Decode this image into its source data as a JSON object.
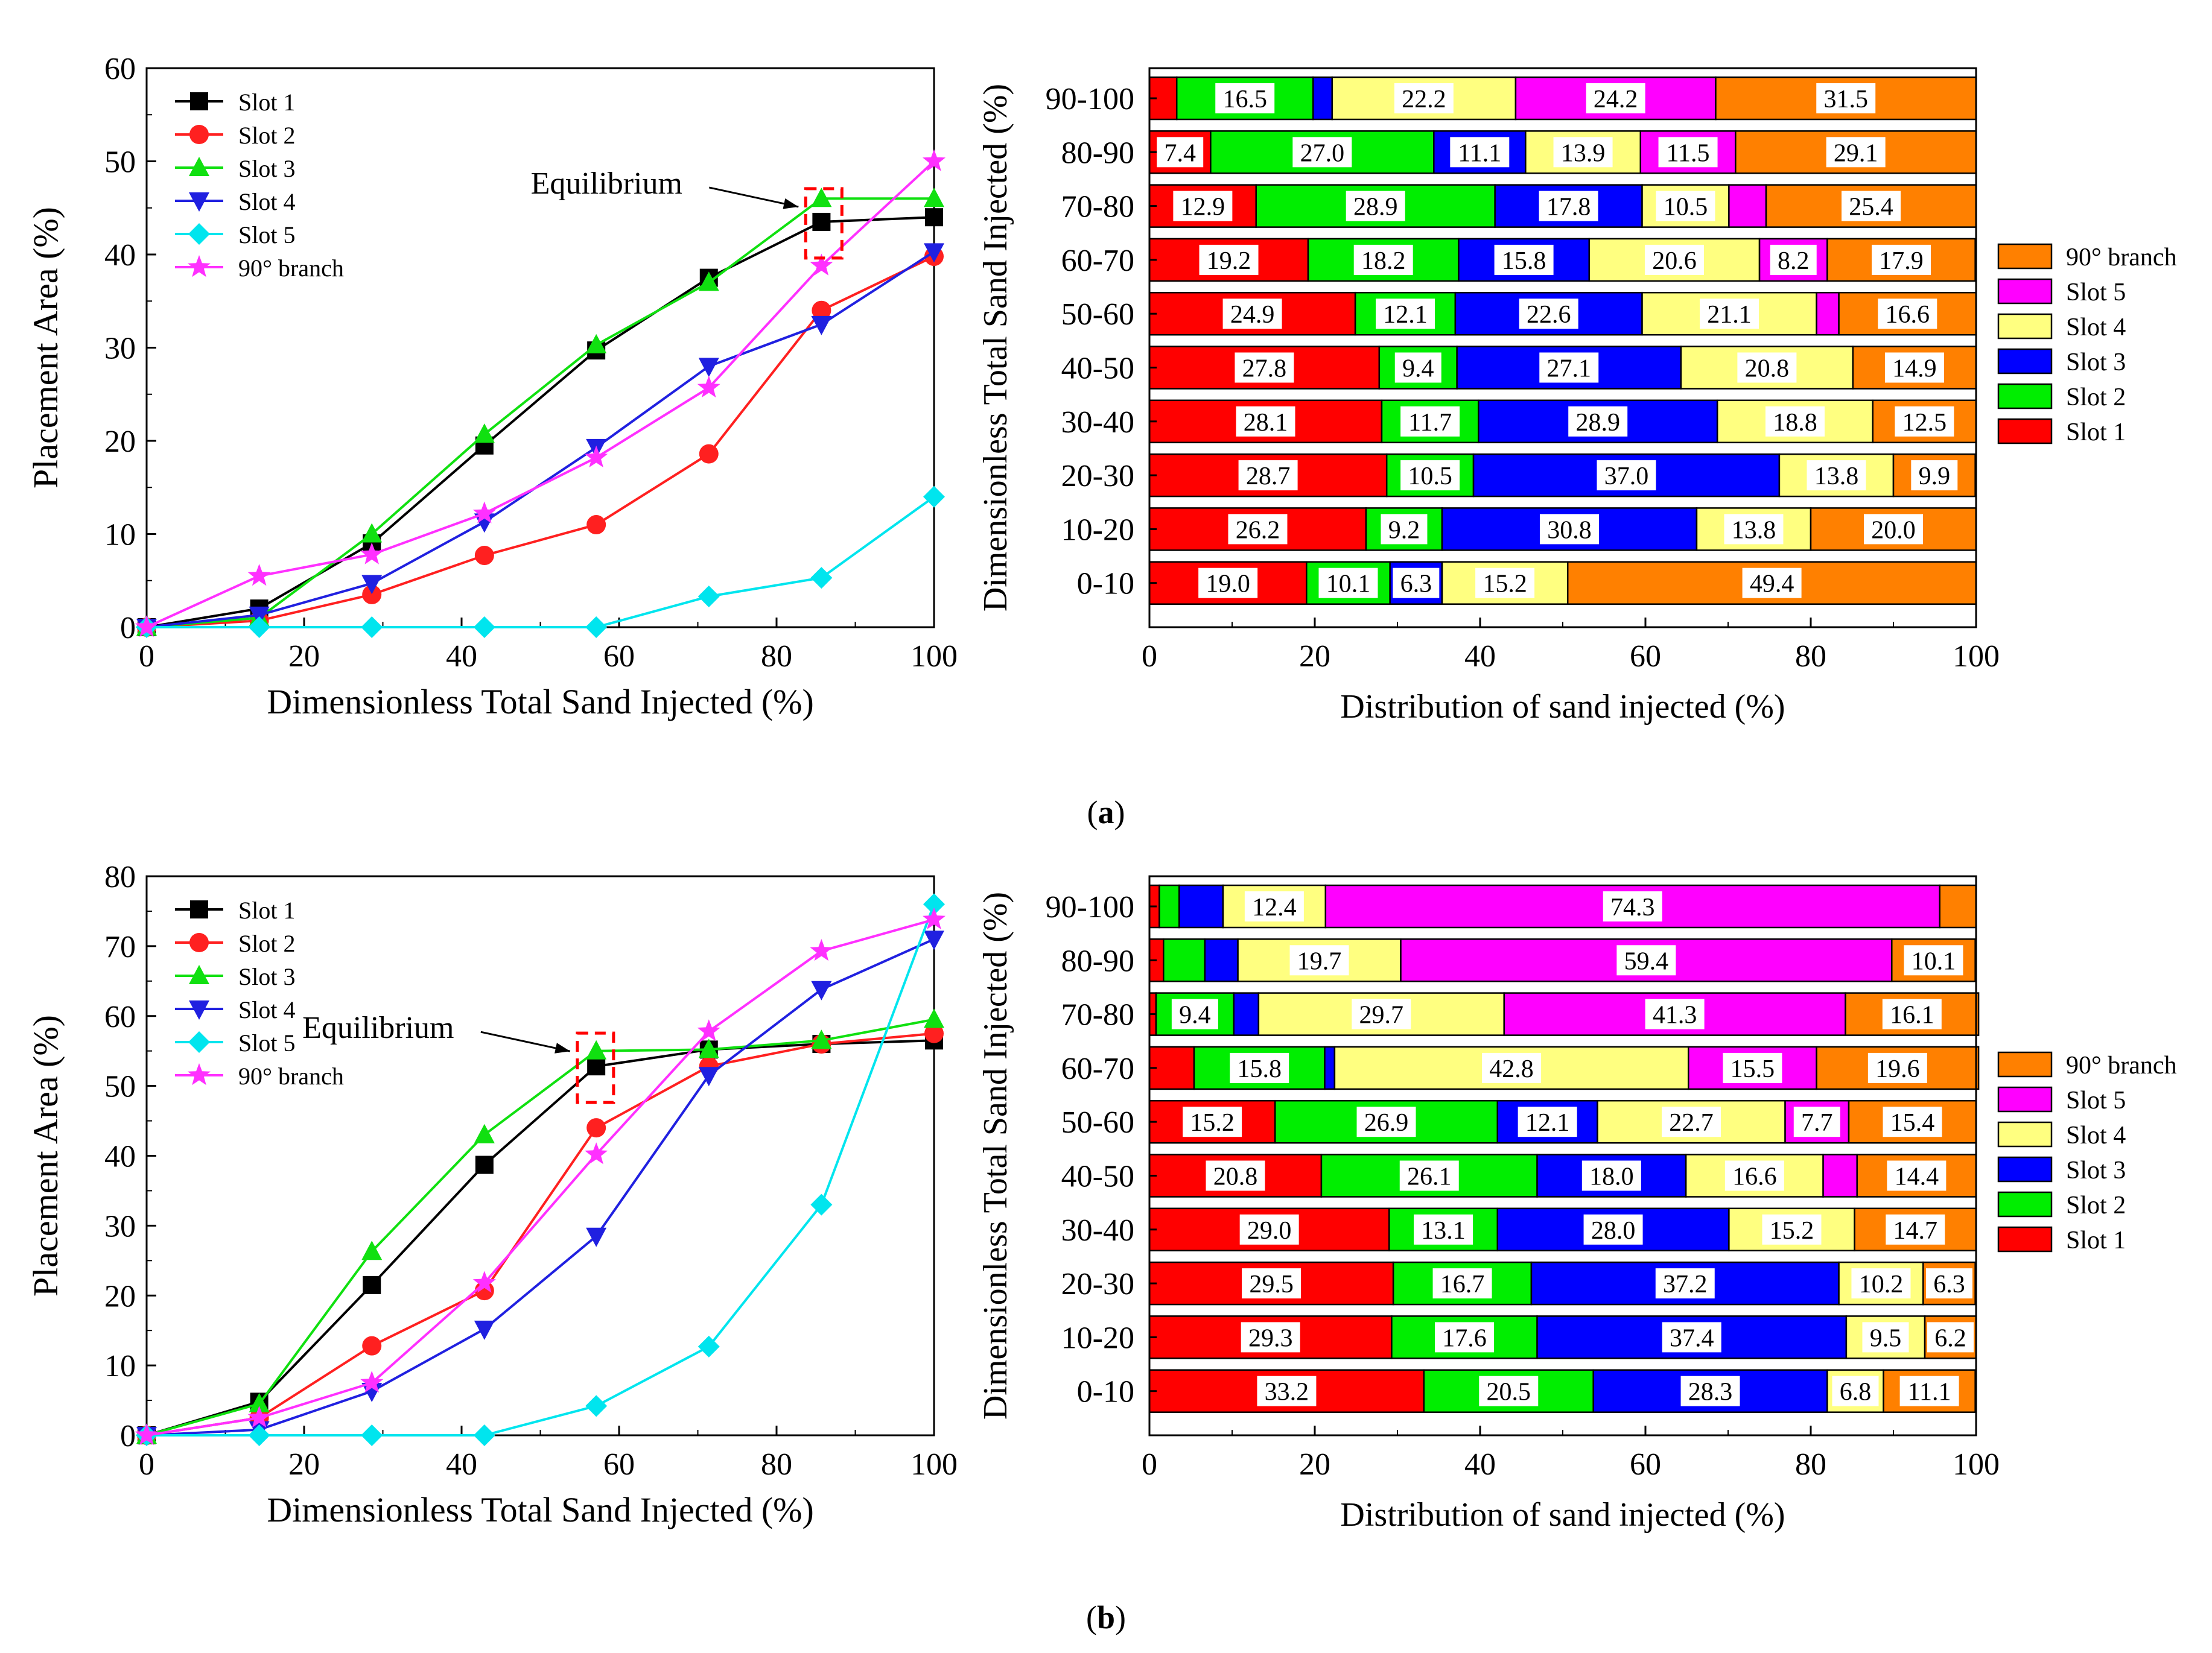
{
  "panels": [
    {
      "label": "(a)",
      "label_letter": "a",
      "line_chart": {
        "type": "line",
        "xlabel": "Dimensionless Total Sand Injected (%)",
        "ylabel": "Placement Area (%)",
        "xlim": [
          0,
          100
        ],
        "ylim": [
          0,
          60
        ],
        "xticks": [
          0,
          20,
          40,
          60,
          80,
          100
        ],
        "yticks": [
          0,
          10,
          20,
          30,
          40,
          50,
          60
        ],
        "annotation": "Equilibrium",
        "annotation_x": 86,
        "x": [
          0,
          14.3,
          28.6,
          42.9,
          57.1,
          71.4,
          85.7,
          100
        ],
        "series": [
          {
            "name": "Slot 1",
            "color": "#000000",
            "marker": "square",
            "values": [
              0,
              2.0,
              9.0,
              19.5,
              29.7,
              37.5,
              43.5,
              44.0
            ]
          },
          {
            "name": "Slot 2",
            "color": "#ff2020",
            "marker": "circle",
            "values": [
              0,
              0.7,
              3.5,
              7.7,
              11.0,
              18.6,
              34.0,
              39.8
            ]
          },
          {
            "name": "Slot 3",
            "color": "#10e010",
            "marker": "triangle-up",
            "values": [
              0,
              1.0,
              10.0,
              20.7,
              30.3,
              37.0,
              46.0,
              46.0
            ]
          },
          {
            "name": "Slot 4",
            "color": "#2020e0",
            "marker": "triangle-down",
            "values": [
              0,
              1.3,
              4.7,
              11.3,
              19.3,
              28.0,
              32.5,
              40.3
            ]
          },
          {
            "name": "Slot 5",
            "color": "#00e5ee",
            "marker": "diamond",
            "values": [
              0,
              0,
              0,
              0,
              0,
              3.3,
              5.3,
              14.0
            ]
          },
          {
            "name": "90° branch",
            "color": "#ff30ff",
            "marker": "star",
            "values": [
              0,
              5.5,
              7.8,
              12.2,
              18.2,
              25.7,
              38.8,
              50.0
            ]
          }
        ]
      },
      "bar_chart": {
        "type": "bar",
        "orientation": "horizontal-stacked",
        "xlabel": "Distribution of sand injected (%)",
        "ylabel": "Dimensionless Total Sand Injected (%)",
        "xlim": [
          0,
          100
        ],
        "xticks": [
          0,
          20,
          40,
          60,
          80,
          100
        ],
        "categories": [
          "90-100",
          "80-90",
          "70-80",
          "60-70",
          "50-60",
          "40-50",
          "30-40",
          "20-30",
          "10-20",
          "0-10"
        ],
        "series": [
          {
            "name": "Slot 1",
            "color": "#ff0000",
            "values": [
              3.3,
              7.4,
              12.9,
              19.2,
              24.9,
              27.8,
              28.1,
              28.7,
              26.2,
              19.0
            ]
          },
          {
            "name": "Slot 2",
            "color": "#00ee00",
            "values": [
              16.5,
              27.0,
              28.9,
              18.2,
              12.1,
              9.4,
              11.7,
              10.5,
              9.2,
              10.1
            ]
          },
          {
            "name": "Slot 3",
            "color": "#0000ff",
            "values": [
              2.3,
              11.1,
              17.8,
              15.8,
              22.6,
              27.1,
              28.9,
              37.0,
              30.8,
              6.3
            ]
          },
          {
            "name": "Slot 4",
            "color": "#ffff80",
            "values": [
              22.2,
              13.9,
              10.5,
              20.6,
              21.1,
              20.8,
              18.8,
              13.8,
              13.8,
              15.2
            ]
          },
          {
            "name": "Slot 5",
            "color": "#ff00ff",
            "values": [
              24.2,
              11.5,
              4.5,
              8.2,
              2.7,
              0,
              0,
              0,
              0,
              0
            ]
          },
          {
            "name": "90° branch",
            "color": "#ff8000",
            "values": [
              31.5,
              29.1,
              25.4,
              17.9,
              16.6,
              14.9,
              12.5,
              9.9,
              20.0,
              49.4
            ]
          }
        ],
        "labels": [
          [
            "",
            "16.5",
            "",
            "22.2",
            "24.2",
            "31.5"
          ],
          [
            "7.4",
            "27.0",
            "11.1",
            "13.9",
            "11.5",
            "29.1"
          ],
          [
            "12.9",
            "28.9",
            "17.8",
            "10.5",
            "",
            "25.4"
          ],
          [
            "19.2",
            "18.2",
            "15.8",
            "20.6",
            "8.2",
            "17.9"
          ],
          [
            "24.9",
            "12.1",
            "22.6",
            "21.1",
            "",
            "16.6"
          ],
          [
            "27.8",
            "9.4",
            "27.1",
            "20.8",
            "",
            "14.9"
          ],
          [
            "28.1",
            "11.7",
            "28.9",
            "18.8",
            "",
            "12.5"
          ],
          [
            "28.7",
            "10.5",
            "37.0",
            "13.8",
            "",
            "9.9"
          ],
          [
            "26.2",
            "9.2",
            "30.8",
            "13.8",
            "",
            "20.0"
          ],
          [
            "19.0",
            "10.1",
            "6.3",
            "15.2",
            "",
            "49.4"
          ]
        ]
      }
    },
    {
      "label": "(b)",
      "label_letter": "b",
      "line_chart": {
        "type": "line",
        "xlabel": "Dimensionless Total Sand Injected (%)",
        "ylabel": "Placement Area (%)",
        "xlim": [
          0,
          100
        ],
        "ylim": [
          0,
          80
        ],
        "xticks": [
          0,
          20,
          40,
          60,
          80,
          100
        ],
        "yticks": [
          0,
          10,
          20,
          30,
          40,
          50,
          60,
          70,
          80
        ],
        "annotation": "Equilibrium",
        "annotation_x": 57,
        "x": [
          0,
          14.3,
          28.6,
          42.9,
          57.1,
          71.4,
          85.7,
          100
        ],
        "series": [
          {
            "name": "Slot 1",
            "color": "#000000",
            "marker": "square",
            "values": [
              0,
              4.8,
              21.5,
              38.7,
              52.8,
              55.2,
              56.0,
              56.5
            ]
          },
          {
            "name": "Slot 2",
            "color": "#ff2020",
            "marker": "circle",
            "values": [
              0,
              2.5,
              12.8,
              20.7,
              44.0,
              52.8,
              56.0,
              57.5
            ]
          },
          {
            "name": "Slot 3",
            "color": "#10e010",
            "marker": "triangle-up",
            "values": [
              0,
              4.5,
              26.3,
              43.0,
              55.0,
              55.2,
              56.5,
              59.5
            ]
          },
          {
            "name": "Slot 4",
            "color": "#2020e0",
            "marker": "triangle-down",
            "values": [
              0,
              0.8,
              6.3,
              15.2,
              28.5,
              51.5,
              63.8,
              71.0
            ]
          },
          {
            "name": "Slot 5",
            "color": "#00e5ee",
            "marker": "diamond",
            "values": [
              0,
              0,
              0,
              0,
              4.2,
              12.7,
              33.0,
              76.0
            ]
          },
          {
            "name": "90° branch",
            "color": "#ff30ff",
            "marker": "star",
            "values": [
              0,
              2.5,
              7.5,
              21.8,
              40.2,
              57.8,
              69.3,
              73.8
            ]
          }
        ]
      },
      "bar_chart": {
        "type": "bar",
        "orientation": "horizontal-stacked",
        "xlabel": "Distribution of sand injected (%)",
        "ylabel": "Dimensionless Total Sand Injected (%)",
        "xlim": [
          0,
          100
        ],
        "xticks": [
          0,
          20,
          40,
          60,
          80,
          100
        ],
        "categories": [
          "90-100",
          "80-90",
          "70-80",
          "60-70",
          "50-60",
          "40-50",
          "30-40",
          "20-30",
          "10-20",
          "0-10"
        ],
        "series": [
          {
            "name": "Slot 1",
            "color": "#ff0000",
            "values": [
              1.2,
              1.7,
              0.8,
              5.4,
              15.2,
              20.8,
              29.0,
              29.5,
              29.3,
              33.2
            ]
          },
          {
            "name": "Slot 2",
            "color": "#00ee00",
            "values": [
              2.4,
              5.0,
              9.4,
              15.8,
              26.9,
              26.1,
              13.1,
              16.7,
              17.6,
              20.5
            ]
          },
          {
            "name": "Slot 3",
            "color": "#0000ff",
            "values": [
              5.3,
              4.0,
              3.0,
              1.2,
              12.1,
              18.0,
              28.0,
              37.2,
              37.4,
              28.3
            ]
          },
          {
            "name": "Slot 4",
            "color": "#ffff80",
            "values": [
              12.4,
              19.7,
              29.7,
              42.8,
              22.7,
              16.6,
              15.2,
              10.2,
              9.5,
              6.8
            ]
          },
          {
            "name": "Slot 5",
            "color": "#ff00ff",
            "values": [
              74.3,
              59.4,
              41.3,
              15.5,
              7.7,
              4.1,
              0,
              0,
              0,
              0
            ]
          },
          {
            "name": "90° branch",
            "color": "#ff8000",
            "values": [
              4.4,
              10.1,
              16.1,
              19.6,
              15.4,
              14.4,
              14.7,
              6.3,
              6.2,
              11.1
            ]
          }
        ],
        "labels": [
          [
            "",
            "",
            "",
            "12.4",
            "74.3",
            ""
          ],
          [
            "",
            "",
            "",
            "19.7",
            "59.4",
            "10.1"
          ],
          [
            "",
            "9.4",
            "",
            "29.7",
            "41.3",
            "16.1"
          ],
          [
            "",
            "15.8",
            "",
            "42.8",
            "15.5",
            "19.6"
          ],
          [
            "15.2",
            "26.9",
            "12.1",
            "22.7",
            "7.7",
            "15.4"
          ],
          [
            "20.8",
            "26.1",
            "18.0",
            "16.6",
            "",
            "14.4"
          ],
          [
            "29.0",
            "13.1",
            "28.0",
            "15.2",
            "",
            "14.7"
          ],
          [
            "29.5",
            "16.7",
            "37.2",
            "10.2",
            "",
            "6.3"
          ],
          [
            "29.3",
            "17.6",
            "37.4",
            "9.5",
            "",
            "6.2"
          ],
          [
            "33.2",
            "20.5",
            "28.3",
            "6.8",
            "",
            "11.1"
          ]
        ]
      }
    }
  ]
}
